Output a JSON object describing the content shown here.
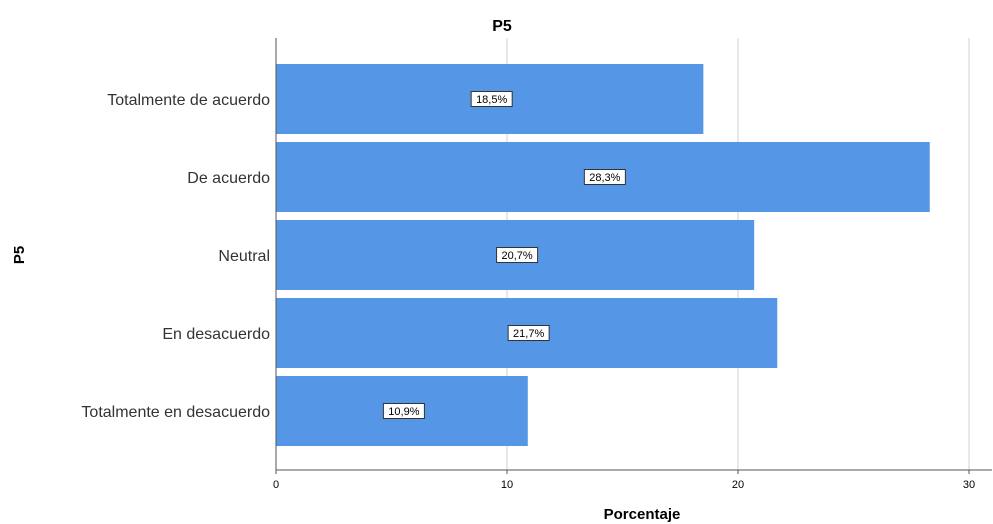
{
  "chart_data": {
    "type": "bar",
    "orientation": "horizontal",
    "title": "P5",
    "xlabel": "Porcentaje",
    "ylabel": "P5",
    "categories": [
      "Totalmente de acuerdo",
      "De acuerdo",
      "Neutral",
      "En desacuerdo",
      "Totalmente en desacuerdo"
    ],
    "values": [
      18.5,
      28.3,
      20.7,
      21.7,
      10.9
    ],
    "data_labels": [
      "18,5%",
      "28,3%",
      "20,7%",
      "21,7%",
      "10,9%"
    ],
    "xlim": [
      0,
      31
    ],
    "xticks": [
      0,
      10,
      20,
      30
    ],
    "xtick_labels": [
      "0",
      "10",
      "20",
      "30"
    ],
    "grid": "vertical",
    "legend": "none",
    "bar_color": "#5596e6"
  }
}
